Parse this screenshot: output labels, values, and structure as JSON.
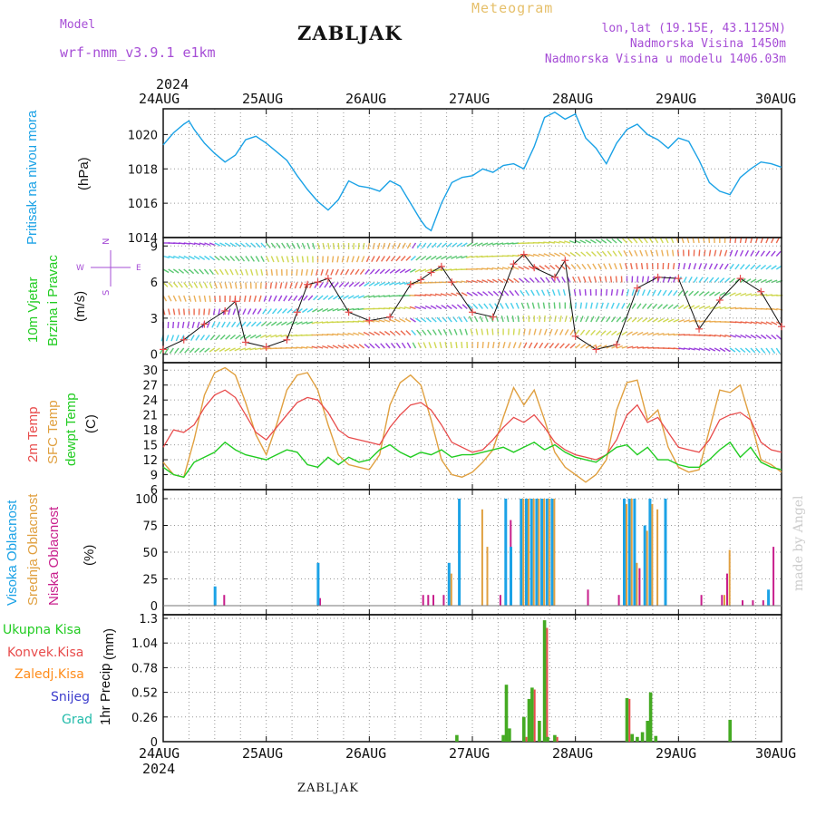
{
  "header": {
    "model_label": "Model",
    "model_name": "wrf-nmm_v3.9.1 e1km",
    "title": "ZABLJAK",
    "meteogram_label": "Meteogram",
    "lonlat": "lon,lat (19.15E, 43.1125N)",
    "elevation": "Nadmorska Visina 1450m",
    "model_elevation": "Nadmorska Visina u modelu 1406.03m",
    "year_top": "2024",
    "year_bottom": "2024",
    "footer": "ZABLJAK",
    "credit": "made by Angel"
  },
  "colors": {
    "pressure": "#1ba2e6",
    "t2m": "#e84c4c",
    "tsfc": "#e0a040",
    "dewpt": "#22cc22",
    "high_cloud": "#1ba2e6",
    "mid_cloud": "#e0a040",
    "low_cloud": "#c81e8c",
    "total_precip": "#44aa22",
    "convective_precip": "#e84c4c",
    "stratiform_precip": "#ff8c1a",
    "snow": "#3c3ccc",
    "graupel": "#22bbaa"
  },
  "chart_data": [
    {
      "type": "line",
      "panel": "pressure",
      "ylabel_left": "Pritisak na nivou mora",
      "ylabel_unit": "(hPa)",
      "ylim": [
        1014,
        1021.5
      ],
      "yticks": [
        "1014",
        "1016",
        "1018",
        "1020"
      ],
      "xticks": [
        "24AUG",
        "25AUG",
        "26AUG",
        "27AUG",
        "28AUG",
        "29AUG",
        "30AUG"
      ],
      "x_days": [
        0,
        0.1,
        0.2,
        0.25,
        0.3,
        0.4,
        0.5,
        0.6,
        0.7,
        0.8,
        0.9,
        1.0,
        1.1,
        1.2,
        1.3,
        1.4,
        1.5,
        1.6,
        1.7,
        1.8,
        1.9,
        2.0,
        2.1,
        2.2,
        2.3,
        2.4,
        2.5,
        2.55,
        2.6,
        2.7,
        2.8,
        2.9,
        3.0,
        3.1,
        3.2,
        3.3,
        3.4,
        3.5,
        3.6,
        3.7,
        3.8,
        3.9,
        4.0,
        4.1,
        4.2,
        4.3,
        4.4,
        4.5,
        4.6,
        4.7,
        4.8,
        4.9,
        5.0,
        5.1,
        5.2,
        5.3,
        5.4,
        5.5,
        5.6,
        5.7,
        5.8,
        5.9,
        6.0
      ],
      "series": [
        {
          "values": [
            1019.4,
            1020.1,
            1020.6,
            1020.8,
            1020.3,
            1019.5,
            1018.9,
            1018.4,
            1018.8,
            1019.7,
            1019.9,
            1019.5,
            1019.0,
            1018.5,
            1017.6,
            1016.8,
            1016.1,
            1015.6,
            1016.2,
            1017.3,
            1017.0,
            1016.9,
            1016.7,
            1017.3,
            1017.0,
            1016.0,
            1015.0,
            1014.6,
            1014.4,
            1016.0,
            1017.2,
            1017.5,
            1017.6,
            1018.0,
            1017.8,
            1018.2,
            1018.3,
            1018.0,
            1019.3,
            1021.0,
            1021.3,
            1020.9,
            1021.2,
            1019.8,
            1019.2,
            1018.3,
            1019.5,
            1020.3,
            1020.6,
            1020.0,
            1019.7,
            1019.2,
            1019.8,
            1019.6,
            1018.5,
            1017.2,
            1016.7,
            1016.5,
            1017.5,
            1018.0,
            1018.4,
            1018.3,
            1018.1
          ]
        }
      ]
    },
    {
      "type": "line",
      "panel": "wind",
      "ylabel_left": "10m Vjetar",
      "ylabel_left2": "Brzina i Pravac",
      "ylabel_unit": "(m/s)",
      "compass": {
        "n": "N",
        "s": "S",
        "w": "W",
        "e": "E"
      },
      "ylim": [
        -0.7,
        9.7
      ],
      "yticks": [
        "0",
        "3",
        "6",
        "9"
      ],
      "x_days": [
        0,
        0.2,
        0.4,
        0.6,
        0.7,
        0.8,
        1.0,
        1.2,
        1.3,
        1.4,
        1.5,
        1.6,
        1.8,
        2.0,
        2.2,
        2.4,
        2.5,
        2.6,
        2.7,
        2.8,
        3.0,
        3.2,
        3.4,
        3.5,
        3.6,
        3.8,
        3.9,
        4.0,
        4.2,
        4.4,
        4.6,
        4.8,
        5.0,
        5.2,
        5.4,
        5.6,
        5.8,
        6.0
      ],
      "series": [
        {
          "name": "Brzina",
          "values": [
            0.4,
            1.2,
            2.5,
            3.6,
            4.4,
            1.0,
            0.6,
            1.2,
            3.5,
            5.8,
            6.0,
            6.3,
            3.5,
            2.8,
            3.1,
            5.8,
            6.2,
            6.8,
            7.3,
            6.0,
            3.5,
            3.1,
            7.5,
            8.3,
            7.2,
            6.4,
            7.8,
            1.5,
            0.4,
            0.8,
            5.5,
            6.4,
            6.3,
            2.1,
            4.5,
            6.3,
            5.2,
            2.3
          ]
        }
      ]
    },
    {
      "type": "line",
      "panel": "temperature",
      "ylabel_left": "2m Temp",
      "ylabel_left2": "SFC Temp",
      "ylabel_left3": "dewpt Temp",
      "ylabel_unit": "(C)",
      "ylim": [
        6,
        31.5
      ],
      "yticks": [
        "6",
        "9",
        "12",
        "15",
        "18",
        "21",
        "24",
        "27",
        "30"
      ],
      "x_days": [
        0,
        0.1,
        0.2,
        0.3,
        0.4,
        0.5,
        0.6,
        0.7,
        0.8,
        0.9,
        1.0,
        1.1,
        1.2,
        1.3,
        1.4,
        1.5,
        1.6,
        1.7,
        1.8,
        1.9,
        2.0,
        2.1,
        2.2,
        2.3,
        2.4,
        2.5,
        2.6,
        2.7,
        2.8,
        2.9,
        3.0,
        3.1,
        3.2,
        3.3,
        3.4,
        3.5,
        3.6,
        3.7,
        3.8,
        3.9,
        4.0,
        4.1,
        4.2,
        4.3,
        4.4,
        4.5,
        4.6,
        4.7,
        4.8,
        4.9,
        5.0,
        5.1,
        5.2,
        5.3,
        5.4,
        5.5,
        5.6,
        5.7,
        5.8,
        5.9,
        6.0
      ],
      "series": [
        {
          "name": "2m Temp",
          "values": [
            14.5,
            18.0,
            17.5,
            19.0,
            22.5,
            25.0,
            26.0,
            24.5,
            21.0,
            17.5,
            16.0,
            18.5,
            21.0,
            23.5,
            24.5,
            24.0,
            21.5,
            18.0,
            16.5,
            16.0,
            15.5,
            15.0,
            18.5,
            21.0,
            23.0,
            23.5,
            22.0,
            19.0,
            15.5,
            14.5,
            13.5,
            14.0,
            16.0,
            18.5,
            20.5,
            19.5,
            21.0,
            18.5,
            15.5,
            14.0,
            13.0,
            12.5,
            12.0,
            13.0,
            16.0,
            21.0,
            23.0,
            19.5,
            20.5,
            17.5,
            14.5,
            14.0,
            13.5,
            16.0,
            20.0,
            21.0,
            21.5,
            20.0,
            15.5,
            14.0,
            13.5
          ]
        },
        {
          "name": "SFC Temp",
          "values": [
            11.5,
            9.0,
            8.5,
            16.0,
            25.0,
            29.5,
            30.5,
            29.0,
            23.5,
            17.0,
            13.0,
            19.0,
            26.0,
            29.0,
            29.5,
            26.0,
            19.0,
            13.0,
            11.0,
            10.5,
            10.0,
            13.0,
            23.0,
            27.5,
            29.0,
            27.0,
            20.0,
            12.0,
            9.0,
            8.5,
            9.5,
            11.5,
            14.0,
            20.5,
            26.5,
            23.0,
            26.0,
            20.0,
            13.5,
            10.5,
            9.0,
            7.5,
            9.0,
            12.0,
            22.0,
            27.5,
            28.0,
            20.0,
            22.0,
            14.5,
            10.5,
            9.5,
            10.0,
            18.0,
            26.0,
            25.5,
            27.0,
            20.0,
            12.0,
            11.0,
            9.5
          ]
        },
        {
          "name": "dewpt Temp",
          "values": [
            10.5,
            9.0,
            8.5,
            11.5,
            12.5,
            13.5,
            15.5,
            14.0,
            13.0,
            12.5,
            12.0,
            13.0,
            14.0,
            13.5,
            11.0,
            10.5,
            12.5,
            11.0,
            12.5,
            11.5,
            12.0,
            14.0,
            15.0,
            13.5,
            12.5,
            13.5,
            13.0,
            14.0,
            12.5,
            13.0,
            13.0,
            13.5,
            14.0,
            14.5,
            13.5,
            14.5,
            15.5,
            14.0,
            15.0,
            13.5,
            12.5,
            12.0,
            11.5,
            13.0,
            14.5,
            15.0,
            13.0,
            14.5,
            12.0,
            12.0,
            11.0,
            10.5,
            10.5,
            12.0,
            14.0,
            15.5,
            12.5,
            14.5,
            11.5,
            10.5,
            10.0
          ]
        }
      ]
    },
    {
      "type": "bar",
      "panel": "clouds",
      "ylabel_left": "Visoka Oblacnost",
      "ylabel_left2": "Srednja Oblacnost",
      "ylabel_left3": "Niska Oblacnost",
      "ylabel_unit": "(%)",
      "ylim": [
        0,
        100
      ],
      "yticks": [
        "0",
        "25",
        "50",
        "75",
        "100"
      ],
      "x_days": [
        0.53,
        0.57,
        1.5,
        1.53,
        2.5,
        2.55,
        2.6,
        2.7,
        2.8,
        2.85,
        2.9,
        3.1,
        3.15,
        3.25,
        3.3,
        3.35,
        3.4,
        3.45,
        3.5,
        3.55,
        3.6,
        3.65,
        3.7,
        3.75,
        3.8,
        4.1,
        4.4,
        4.5,
        4.55,
        4.6,
        4.65,
        4.7,
        4.75,
        4.8,
        4.85,
        4.9,
        5.2,
        5.4,
        5.45,
        5.5,
        5.6,
        5.7,
        5.8,
        5.85,
        5.9,
        5.95
      ],
      "series": [
        {
          "name": "Visoka Oblacnost",
          "values": [
            18,
            0,
            0,
            40,
            0,
            0,
            0,
            0,
            40,
            0,
            100,
            0,
            0,
            0,
            0,
            100,
            55,
            0,
            100,
            100,
            100,
            100,
            100,
            100,
            100,
            0,
            0,
            100,
            100,
            100,
            0,
            75,
            100,
            0,
            0,
            100,
            0,
            0,
            0,
            0,
            0,
            0,
            0,
            0,
            15,
            0
          ]
        },
        {
          "name": "Srednja Oblacnost",
          "values": [
            0,
            0,
            0,
            0,
            0,
            0,
            0,
            0,
            30,
            0,
            0,
            90,
            55,
            0,
            0,
            0,
            0,
            0,
            100,
            100,
            100,
            100,
            100,
            100,
            100,
            0,
            0,
            95,
            100,
            40,
            0,
            70,
            95,
            90,
            0,
            0,
            0,
            0,
            10,
            52,
            0,
            0,
            0,
            0,
            0,
            0
          ]
        },
        {
          "name": "Niska Oblacnost",
          "values": [
            0,
            10,
            7,
            0,
            10,
            10,
            10,
            10,
            0,
            0,
            0,
            0,
            0,
            10,
            20,
            80,
            0,
            20,
            0,
            100,
            30,
            50,
            60,
            50,
            0,
            15,
            10,
            0,
            0,
            35,
            40,
            0,
            0,
            0,
            10,
            0,
            10,
            10,
            30,
            0,
            5,
            5,
            5,
            5,
            55,
            0
          ]
        }
      ]
    },
    {
      "type": "bar",
      "panel": "precip",
      "ylabel_left": "1hr Precip",
      "ylabel_unit": "(mm)",
      "legend": [
        "Ukupna Kisa",
        "Konvek.Kisa",
        "Zaledj.Kisa",
        "Snijeg",
        "Grad"
      ],
      "ylim": [
        0,
        1.3
      ],
      "yticks": [
        "0",
        "0.26",
        "0.52",
        "0.78",
        "1.04",
        "1.3"
      ],
      "x_days": [
        2.85,
        3.3,
        3.33,
        3.36,
        3.5,
        3.55,
        3.58,
        3.65,
        3.7,
        3.73,
        3.8,
        4.5,
        4.55,
        4.6,
        4.65,
        4.7,
        4.73,
        4.78,
        4.82,
        5.5
      ],
      "series": [
        {
          "name": "Ukupna Kisa",
          "values": [
            0.07,
            0.07,
            0.6,
            0.14,
            0.26,
            0.45,
            0.57,
            0.22,
            1.28,
            0.05,
            0.07,
            0.46,
            0.08,
            0.05,
            0.1,
            0.22,
            0.52,
            0.06,
            0.0,
            0.23
          ]
        },
        {
          "name": "Konvek.Kisa",
          "values": [
            0.0,
            0.0,
            0.05,
            0.0,
            0.05,
            0.05,
            0.55,
            0.0,
            1.2,
            0.0,
            0.05,
            0.45,
            0.0,
            0.0,
            0.0,
            0.05,
            0.0,
            0.0,
            0.0,
            0.0
          ]
        }
      ]
    }
  ]
}
